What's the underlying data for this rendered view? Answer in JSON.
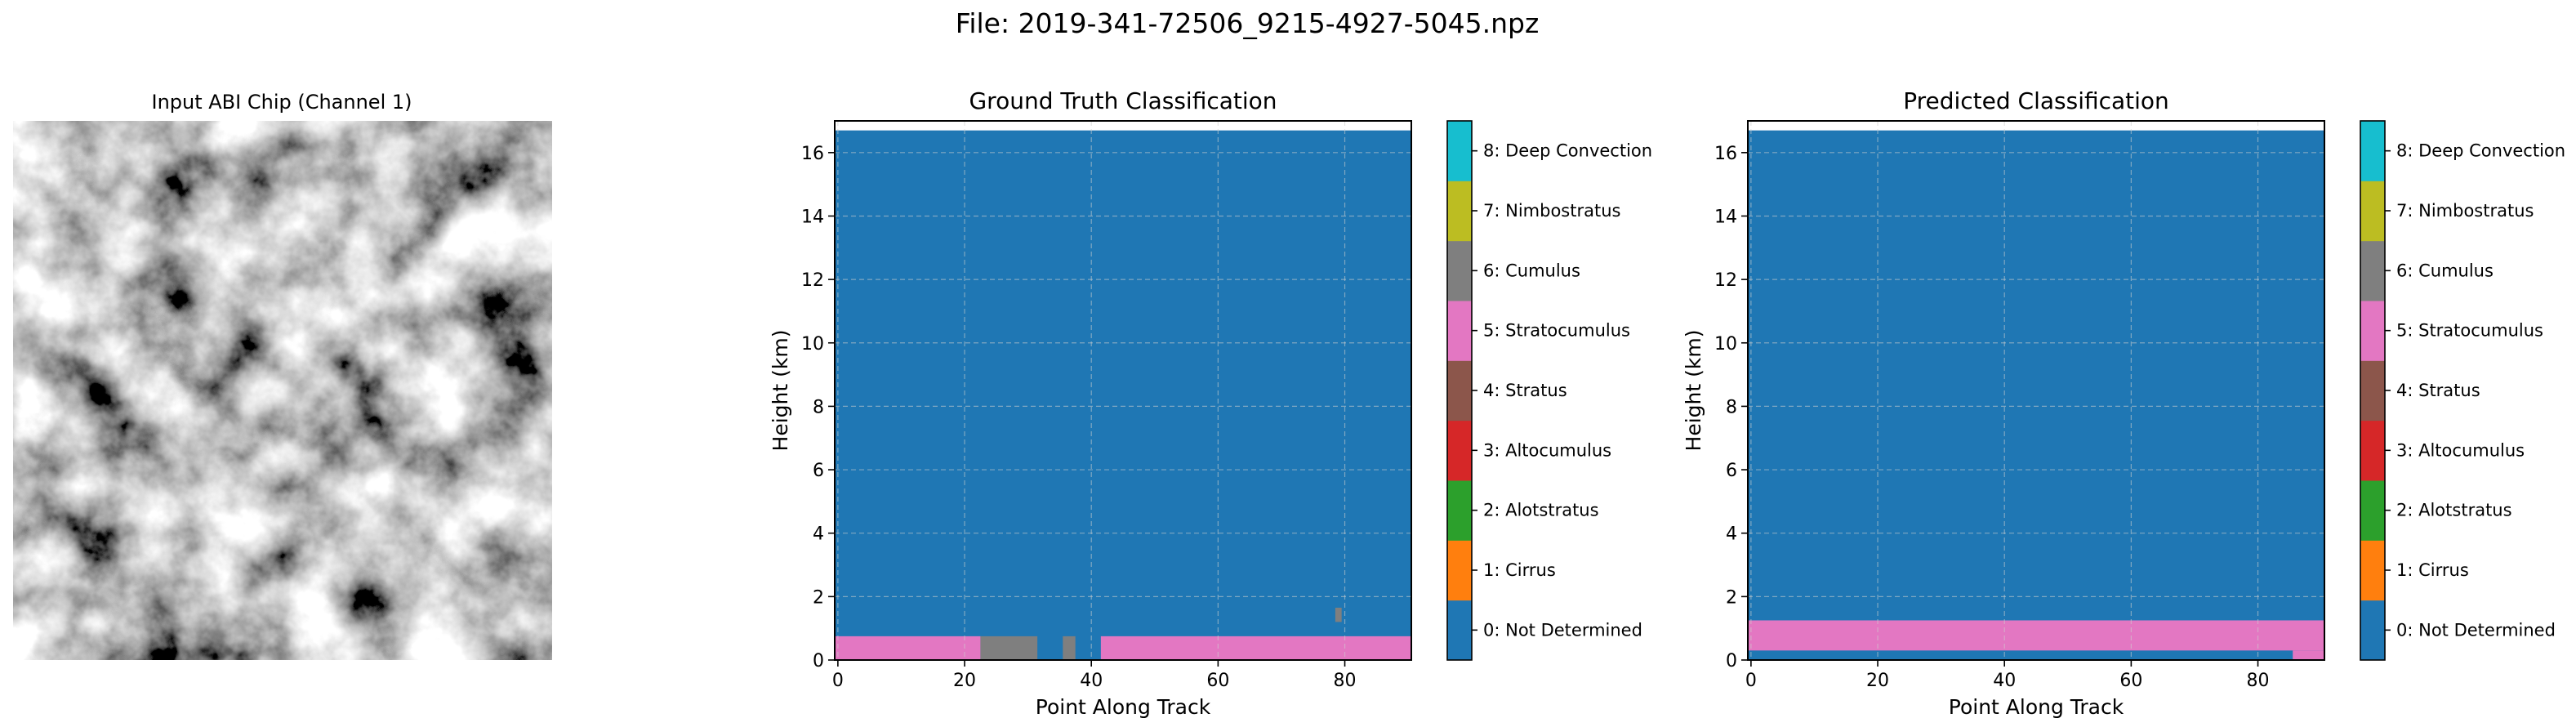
{
  "figure": {
    "suptitle": "File: 2019-341-72506_9215-4927-5045.npz"
  },
  "image_panel": {
    "title": "Input ABI Chip (Channel 1)",
    "description_icon": "grayscale-satellite-image"
  },
  "class_labels": [
    "0: Not Determined",
    "1: Cirrus",
    "2: Alotstratus",
    "3: Altocumulus",
    "4: Stratus",
    "5: Stratocumulus",
    "6: Cumulus",
    "7: Nimbostratus",
    "8: Deep Convection"
  ],
  "class_colors": [
    "#1f77b4",
    "#ff7f0e",
    "#2ca02c",
    "#d62728",
    "#8c564b",
    "#e377c2",
    "#7f7f7f",
    "#bcbd22",
    "#17becf"
  ],
  "chart_data": [
    {
      "type": "heatmap",
      "title": "Ground Truth Classification",
      "xlabel": "Point Along Track",
      "ylabel": "Height (km)",
      "xlim": [
        -0.5,
        90.5
      ],
      "ylim": [
        0,
        17
      ],
      "xticks": [
        "0",
        "20",
        "40",
        "60",
        "80"
      ],
      "yticks": [
        "0",
        "2",
        "4",
        "6",
        "8",
        "10",
        "12",
        "14",
        "16"
      ],
      "grid": true,
      "data_top_km": 16.7,
      "background_class": 0,
      "regions": [
        {
          "class": 5,
          "x": [
            -0.5,
            22.5
          ],
          "y": [
            0,
            0.75
          ]
        },
        {
          "class": 6,
          "x": [
            22.5,
            31.5
          ],
          "y": [
            0,
            0.75
          ]
        },
        {
          "class": 0,
          "x": [
            31.5,
            35.5
          ],
          "y": [
            0,
            0.75
          ]
        },
        {
          "class": 6,
          "x": [
            35.5,
            37.5
          ],
          "y": [
            0,
            0.75
          ]
        },
        {
          "class": 0,
          "x": [
            37.5,
            41.5
          ],
          "y": [
            0,
            0.75
          ]
        },
        {
          "class": 5,
          "x": [
            41.5,
            90.5
          ],
          "y": [
            0,
            0.75
          ]
        },
        {
          "class": 6,
          "x": [
            78.5,
            79.5
          ],
          "y": [
            1.2,
            1.65
          ]
        }
      ]
    },
    {
      "type": "heatmap",
      "title": "Predicted Classification",
      "xlabel": "Point Along Track",
      "ylabel": "Height (km)",
      "xlim": [
        -0.5,
        90.5
      ],
      "ylim": [
        0,
        17
      ],
      "xticks": [
        "0",
        "20",
        "40",
        "60",
        "80"
      ],
      "yticks": [
        "0",
        "2",
        "4",
        "6",
        "8",
        "10",
        "12",
        "14",
        "16"
      ],
      "grid": true,
      "data_top_km": 16.7,
      "background_class": 0,
      "regions": [
        {
          "class": 5,
          "x": [
            -0.5,
            90.5
          ],
          "y": [
            0.3,
            1.25
          ]
        },
        {
          "class": 5,
          "x": [
            85.5,
            90.5
          ],
          "y": [
            0,
            0.3
          ]
        }
      ]
    }
  ]
}
